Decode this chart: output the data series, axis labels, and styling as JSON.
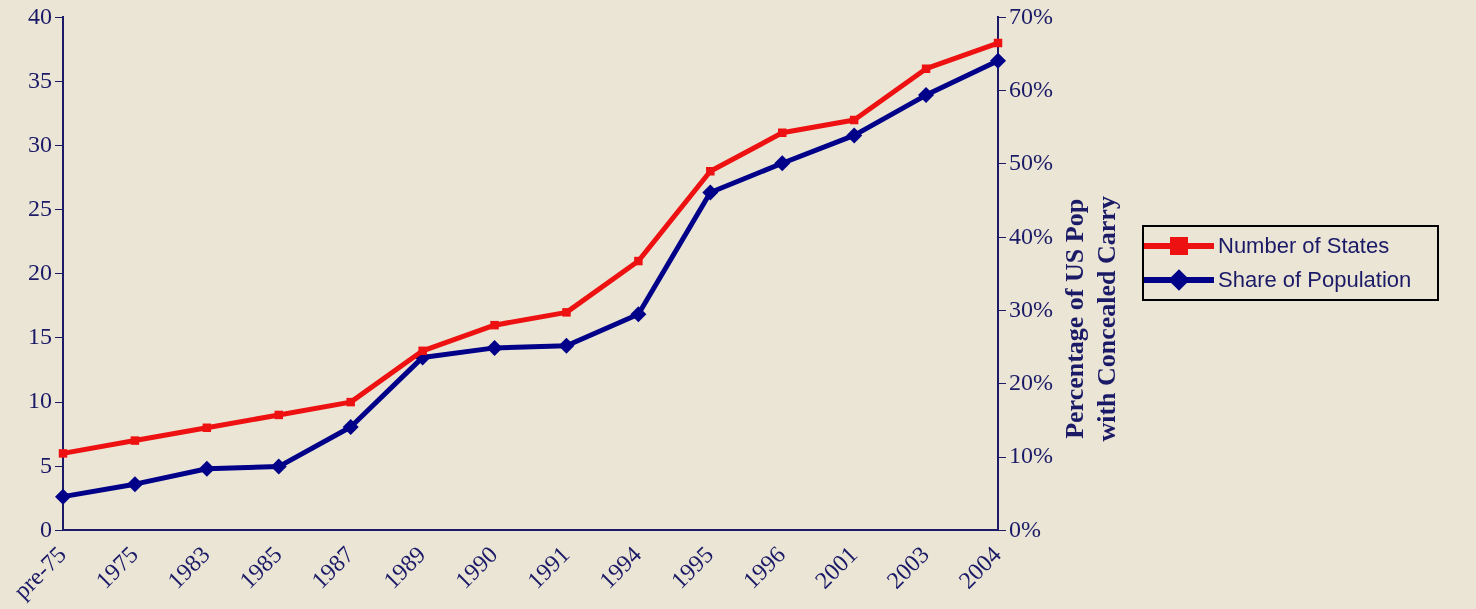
{
  "chart_data": {
    "type": "line",
    "y2label": "Percentage of US Pop with Concealed Carry",
    "categories": [
      "pre-75",
      "1975",
      "1983",
      "1985",
      "1987",
      "1989",
      "1990",
      "1991",
      "1994",
      "1995",
      "1996",
      "2001",
      "2003",
      "2004"
    ],
    "series": [
      {
        "name": "Number of States",
        "color": "#ee1111",
        "marker": "square",
        "values": [
          6,
          7,
          8,
          9,
          10,
          14,
          16,
          17,
          21,
          28,
          31,
          32,
          36,
          38
        ]
      },
      {
        "name": "Share of Population",
        "color": "#000088",
        "marker": "diamond",
        "axis": "y2",
        "values": [
          4.6,
          6.3,
          8.4,
          8.7,
          14.1,
          23.6,
          24.9,
          25.2,
          29.5,
          46.1,
          50.1,
          53.9,
          59.4,
          64.1
        ]
      }
    ],
    "ylim": [
      0,
      40
    ],
    "yticks": [
      0,
      5,
      10,
      15,
      20,
      25,
      30,
      35,
      40
    ],
    "y2lim": [
      0,
      70
    ],
    "y2ticks": [
      {
        "value": 0,
        "label": "0%"
      },
      {
        "value": 10,
        "label": "10%"
      },
      {
        "value": 20,
        "label": "20%"
      },
      {
        "value": 30,
        "label": "30%"
      },
      {
        "value": 40,
        "label": "40%"
      },
      {
        "value": 50,
        "label": "50%"
      },
      {
        "value": 60,
        "label": "60%"
      },
      {
        "value": 70,
        "label": "70%"
      }
    ],
    "grid": false,
    "legend": "right",
    "line_style": "solid"
  }
}
